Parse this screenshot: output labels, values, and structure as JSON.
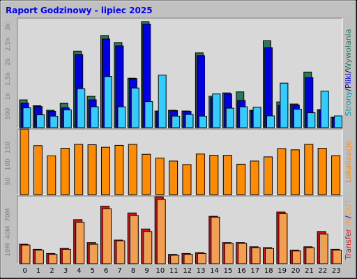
{
  "title": "Raport Godzinowy -  lipiec 2025",
  "colors": {
    "background": "#c0c0c0",
    "plot_bg": "#d8d8d8",
    "hits": "#2a7a5a",
    "files": "#0000e0",
    "pages": "#33ccff",
    "visits": "#ff8c00",
    "kb_out": "#dd1111",
    "kb_in": "#f0a050"
  },
  "chart_data": [
    {
      "type": "bar",
      "categories": [
        "0",
        "1",
        "2",
        "3",
        "4",
        "5",
        "6",
        "7",
        "8",
        "9",
        "10",
        "11",
        "12",
        "13",
        "14",
        "15",
        "16",
        "17",
        "18",
        "19",
        "20",
        "21",
        "22",
        "23"
      ],
      "yticks": [
        "500",
        "1k",
        "1.5k",
        "2k",
        "2.5k",
        "3k"
      ],
      "ylim": [
        0,
        3150
      ],
      "side_label": [
        {
          "text": "Strony",
          "color": "#00a0b0"
        },
        {
          "text": "/",
          "color": "#000080"
        },
        {
          "text": "Pliki",
          "color": "#0000ff"
        },
        {
          "text": "/",
          "color": "#000080"
        },
        {
          "text": "Wywołania",
          "color": "#2a7a5a"
        }
      ],
      "series": [
        {
          "key": "hits",
          "values": [
            800,
            630,
            500,
            700,
            2200,
            900,
            2650,
            2450,
            1420,
            3050,
            480,
            500,
            480,
            2150,
            900,
            1000,
            1030,
            500,
            2500,
            740,
            680,
            1600,
            520,
            300
          ]
        },
        {
          "key": "files",
          "values": [
            700,
            610,
            470,
            570,
            2100,
            800,
            2550,
            2350,
            1410,
            2980,
            460,
            490,
            470,
            2070,
            860,
            970,
            780,
            480,
            2300,
            640,
            650,
            1440,
            510,
            280
          ]
        },
        {
          "key": "pages",
          "values": [
            570,
            370,
            330,
            510,
            1120,
            600,
            1470,
            600,
            1140,
            750,
            1510,
            330,
            380,
            330,
            970,
            560,
            600,
            590,
            340,
            1280,
            530,
            430,
            1050,
            340
          ]
        }
      ]
    },
    {
      "type": "bar",
      "categories": [
        "0",
        "1",
        "2",
        "3",
        "4",
        "5",
        "6",
        "7",
        "8",
        "9",
        "10",
        "11",
        "12",
        "13",
        "14",
        "15",
        "16",
        "17",
        "18",
        "19",
        "20",
        "21",
        "22",
        "23"
      ],
      "yticks": [
        "50",
        "100",
        "150"
      ],
      "ylim": [
        0,
        205
      ],
      "side_label": [
        {
          "text": "Lokalizacje",
          "color": "#ff8c00"
        }
      ],
      "series": [
        {
          "key": "visits",
          "values": [
            205,
            153,
            121,
            145,
            157,
            156,
            148,
            154,
            157,
            126,
            114,
            105,
            94,
            127,
            123,
            123,
            95,
            105,
            118,
            144,
            140,
            157,
            145,
            122
          ]
        }
      ]
    },
    {
      "type": "bar",
      "categories": [
        "0",
        "1",
        "2",
        "3",
        "4",
        "5",
        "6",
        "7",
        "8",
        "9",
        "10",
        "11",
        "12",
        "13",
        "14",
        "15",
        "16",
        "17",
        "18",
        "19",
        "20",
        "21",
        "22",
        "23"
      ],
      "yticks": [
        "10M",
        "40M",
        "70M"
      ],
      "ylim": [
        0,
        80
      ],
      "side_label": [
        {
          "text": "Transfer",
          "color": "#dd1111"
        },
        {
          "text": " IN",
          "color": "#f0a050"
        },
        {
          "text": "/",
          "color": "#000080"
        },
        {
          "text": "OUT",
          "color": "#f0a050"
        }
      ],
      "series": [
        {
          "key": "kb_out",
          "values": [
            23,
            17,
            12,
            18,
            52,
            25,
            68,
            28,
            60,
            41,
            79,
            11,
            12,
            13,
            56,
            25,
            25,
            20,
            19,
            61,
            16,
            20,
            38,
            17
          ]
        },
        {
          "key": "kb_in",
          "values": [
            22,
            16,
            11,
            17,
            49,
            23,
            65,
            27,
            57,
            38,
            76,
            10,
            11,
            12,
            55,
            24,
            24,
            19,
            18,
            59,
            15,
            19,
            35,
            16
          ]
        }
      ]
    }
  ]
}
